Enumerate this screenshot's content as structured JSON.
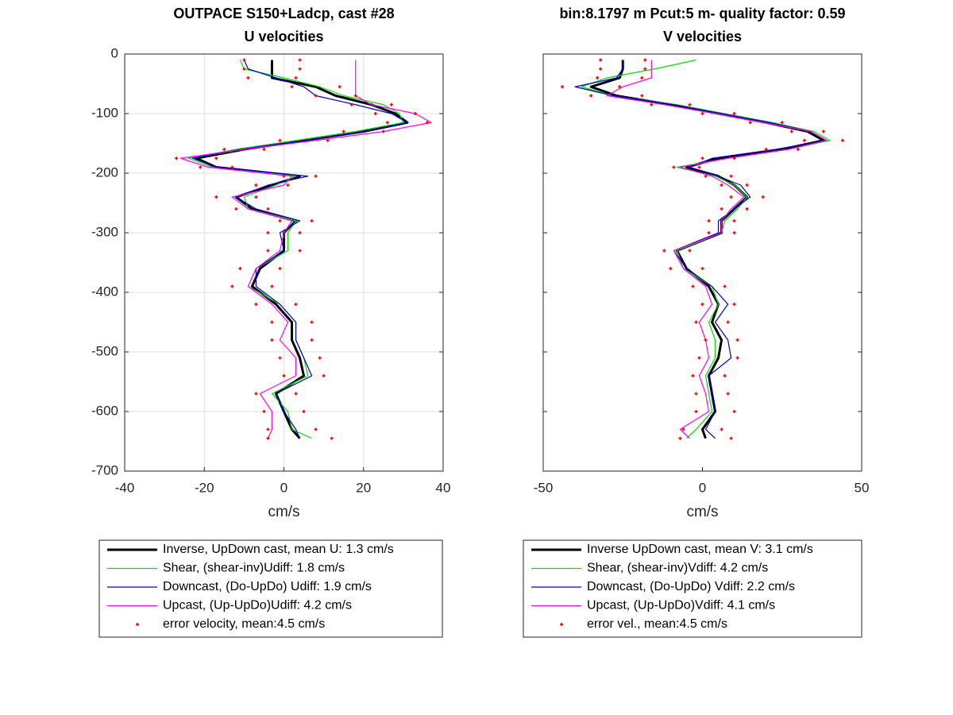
{
  "chart_data": [
    {
      "type": "line",
      "title": "OUTPACE S150+Ladcp, cast #28",
      "subtitle": "U velocities",
      "xlabel": "cm/s",
      "xlim": [
        -40,
        40
      ],
      "xticks": [
        -40,
        -20,
        0,
        20,
        40
      ],
      "ylim": [
        -700,
        0
      ],
      "yticks": [
        -700,
        -600,
        -500,
        -400,
        -300,
        -200,
        -100,
        0
      ],
      "grid": true,
      "show_ytick_labels": true,
      "y": [
        -10,
        -25,
        -40,
        -55,
        -70,
        -85,
        -100,
        -115,
        -130,
        -145,
        -160,
        -175,
        -190,
        -205,
        -220,
        -240,
        -260,
        -280,
        -300,
        -330,
        -360,
        -390,
        -420,
        -450,
        -480,
        -510,
        -540,
        -570,
        -600,
        -630,
        -645
      ],
      "series": [
        {
          "name": "Inverse, UpDown cast, mean U:  1.3 cm/s",
          "color": "#000000",
          "linewidth": 3,
          "values": [
            -3,
            -3,
            -3,
            8,
            13,
            22,
            28,
            31,
            20,
            5,
            -10,
            -22,
            -17,
            4,
            -3,
            -12,
            -8,
            3,
            0,
            0,
            -6,
            -8,
            -2,
            2,
            2,
            4,
            5,
            -2,
            0,
            2,
            4
          ]
        },
        {
          "name": "Shear, (shear-inv)Udiff:  1.8 cm/s",
          "color": "#00e000",
          "linewidth": 1.2,
          "values": [
            -11,
            -10,
            0,
            9,
            15,
            25,
            29,
            30,
            18,
            3,
            -12,
            -24,
            -18,
            3,
            -2,
            -10,
            -9,
            3,
            1,
            1,
            -7,
            -9,
            -1,
            3,
            3,
            5,
            6,
            -3,
            1,
            2,
            7
          ]
        },
        {
          "name": "Downcast, (Do-UpDo) Udiff:  1.9 cm/s",
          "color": "#0000cc",
          "linewidth": 1.2,
          "values": [
            -10,
            -9,
            -2,
            5,
            8,
            18,
            27,
            31,
            20,
            5,
            -11,
            -23,
            -17,
            6,
            -4,
            -12,
            -7,
            4,
            -1,
            0,
            -7,
            -7,
            -1,
            3,
            3,
            5,
            7,
            -2,
            0,
            3,
            4
          ]
        },
        {
          "name": "Upcast, (Up-UpDo)Udiff:  4.2 cm/s",
          "color": "#ff00ff",
          "linewidth": 1.2,
          "values": [
            18,
            18,
            18,
            18,
            18,
            22,
            33,
            37,
            25,
            8,
            -10,
            -26,
            -19,
            2,
            0,
            -13,
            -9,
            2,
            0,
            -1,
            -7,
            -9,
            -3,
            1,
            -1,
            3,
            3,
            -6,
            -3,
            -3,
            -4
          ]
        },
        {
          "name": "error velocity, mean:4.5 cm/s",
          "color": "#ff0000",
          "marker": "dots",
          "values": [
            -3,
            -3,
            -3,
            8,
            13,
            22,
            28,
            31,
            20,
            5,
            -10,
            -22,
            -17,
            4,
            -3,
            -12,
            -8,
            3,
            0,
            0,
            -6,
            -8,
            -2,
            2,
            2,
            4,
            5,
            -2,
            0,
            2,
            4
          ],
          "errors": [
            7,
            7,
            6,
            6,
            5,
            5,
            5,
            5,
            5,
            6,
            5,
            5,
            4,
            4,
            4,
            5,
            4,
            4,
            4,
            4,
            5,
            5,
            5,
            5,
            5,
            5,
            5,
            5,
            5,
            6,
            8
          ]
        }
      ]
    },
    {
      "type": "line",
      "title": "bin:8.1797 m  Pcut:5 m- quality factor:  0.59",
      "subtitle": "V velocities",
      "xlabel": "cm/s",
      "xlim": [
        -50,
        50
      ],
      "xticks": [
        -50,
        0,
        50
      ],
      "ylim": [
        -700,
        0
      ],
      "yticks": [
        -700,
        -600,
        -500,
        -400,
        -300,
        -200,
        -100,
        0
      ],
      "grid": false,
      "show_ytick_labels": false,
      "y": [
        -10,
        -25,
        -40,
        -55,
        -70,
        -85,
        -100,
        -115,
        -130,
        -145,
        -160,
        -175,
        -190,
        -205,
        -220,
        -240,
        -260,
        -280,
        -300,
        -330,
        -360,
        -390,
        -420,
        -450,
        -480,
        -510,
        -540,
        -570,
        -600,
        -630,
        -645
      ],
      "series": [
        {
          "name": "Inverse UpDown cast, mean V:  3.1 cm/s",
          "color": "#000000",
          "linewidth": 3,
          "values": [
            -25,
            -25,
            -26,
            -35,
            -27,
            -10,
            5,
            20,
            33,
            38,
            25,
            5,
            -5,
            5,
            10,
            14,
            10,
            6,
            6,
            -8,
            -5,
            2,
            5,
            3,
            6,
            5,
            2,
            3,
            4,
            0,
            1
          ]
        },
        {
          "name": "Shear, (shear-inv)Vdiff:  4.2 cm/s",
          "color": "#00e000",
          "linewidth": 1.2,
          "values": [
            -2,
            -15,
            -30,
            -38,
            -28,
            -8,
            7,
            22,
            35,
            40,
            27,
            8,
            -8,
            4,
            10,
            14,
            11,
            7,
            6,
            -8,
            -6,
            3,
            5,
            2,
            4,
            4,
            1,
            2,
            3,
            -2,
            -5
          ]
        },
        {
          "name": "Downcast, (Do-UpDo) Vdiff:  2.2 cm/s",
          "color": "#0000cc",
          "linewidth": 1.2,
          "values": [
            -25,
            -25,
            -27,
            -40,
            -28,
            -9,
            6,
            21,
            34,
            39,
            23,
            3,
            -4,
            5,
            12,
            15,
            10,
            5,
            5,
            -9,
            -5,
            3,
            8,
            4,
            8,
            9,
            2,
            3,
            4,
            1,
            4
          ]
        },
        {
          "name": "Upcast, (Up-UpDo)Vdiff:  4.1 cm/s",
          "color": "#ff00ff",
          "linewidth": 1.2,
          "values": [
            -16,
            -16,
            -16,
            -25,
            -30,
            -12,
            4,
            19,
            34,
            39,
            27,
            8,
            -7,
            3,
            8,
            13,
            9,
            6,
            6,
            -9,
            -6,
            1,
            3,
            -1,
            1,
            2,
            -1,
            1,
            2,
            -7,
            -4
          ]
        },
        {
          "name": "error vel., mean:4.5 cm/s",
          "color": "#ff0000",
          "marker": "dots",
          "values": [
            -25,
            -25,
            -26,
            -35,
            -27,
            -10,
            5,
            20,
            33,
            38,
            25,
            5,
            -5,
            5,
            10,
            14,
            10,
            6,
            6,
            -8,
            -5,
            2,
            5,
            3,
            6,
            5,
            2,
            3,
            4,
            0,
            1
          ],
          "errors": [
            7,
            7,
            7,
            9,
            8,
            6,
            5,
            5,
            5,
            6,
            5,
            5,
            4,
            4,
            4,
            5,
            4,
            4,
            4,
            4,
            5,
            5,
            5,
            5,
            5,
            6,
            5,
            5,
            6,
            6,
            8
          ]
        }
      ]
    }
  ]
}
